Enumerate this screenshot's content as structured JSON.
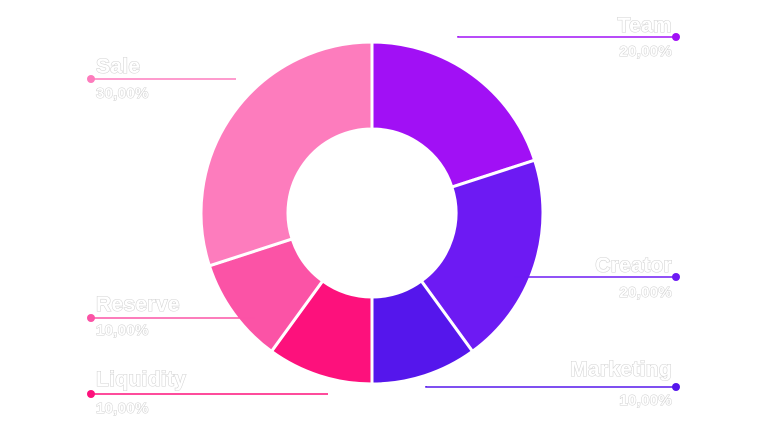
{
  "chart_data": {
    "type": "pie",
    "variant": "donut",
    "slices": [
      {
        "label": "Team",
        "display": "20,00%",
        "value": 20,
        "color": "#a110f5"
      },
      {
        "label": "Creator",
        "display": "20,00%",
        "value": 20,
        "color": "#6d1af3"
      },
      {
        "label": "Marketing",
        "display": "10,00%",
        "value": 10,
        "color": "#5516ec"
      },
      {
        "label": "Liquidity",
        "display": "10,00%",
        "value": 10,
        "color": "#fd117c"
      },
      {
        "label": "Reserve",
        "display": "10,00%",
        "value": 10,
        "color": "#fb53a6"
      },
      {
        "label": "Sale",
        "display": "30,00%",
        "value": 30,
        "color": "#fd7cbd"
      }
    ]
  }
}
